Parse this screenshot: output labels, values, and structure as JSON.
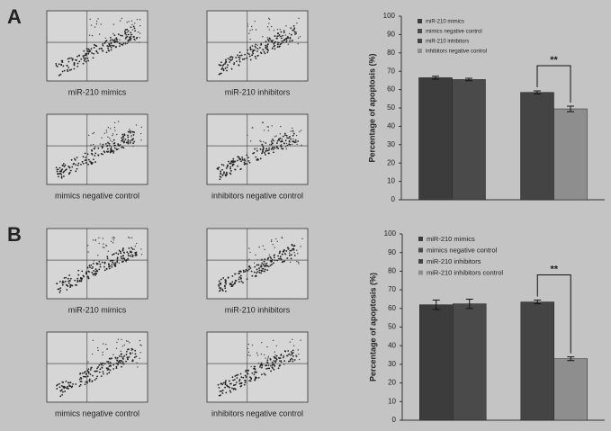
{
  "panels": [
    {
      "label": "A",
      "plots": [
        "miR-210 mimics",
        "miR-210 inhibitors",
        "mimics negative control",
        "inhibitors negative control"
      ]
    },
    {
      "label": "B",
      "plots": [
        "miR-210 mimics",
        "miR-210 inhibitors",
        "mimics negative control",
        "inhibitors negative control"
      ]
    }
  ],
  "chart_data": [
    {
      "type": "bar",
      "ylabel": "Percentage of apoptosis (%)",
      "categories": [
        null,
        null
      ],
      "series": [
        {
          "name": "miR-210 mimics",
          "color": "#3c3c3c",
          "values": [
            66.5,
            null
          ],
          "errors": [
            0.8,
            null
          ]
        },
        {
          "name": "mimics negative control",
          "color": "#4a4a4a",
          "values": [
            65.5,
            null
          ],
          "errors": [
            0.7,
            null
          ]
        },
        {
          "name": "miR-210 inhibitors",
          "color": "#444444",
          "values": [
            null,
            58.5
          ],
          "errors": [
            null,
            0.8
          ]
        },
        {
          "name": "inhibitors negative control",
          "color": "#8e8e8e",
          "values": [
            null,
            49.5
          ],
          "errors": [
            null,
            1.5
          ]
        }
      ],
      "ylim": [
        0,
        100
      ],
      "yticks": [
        0,
        10,
        20,
        30,
        40,
        50,
        60,
        70,
        80,
        90,
        100
      ],
      "annotation": "**"
    },
    {
      "type": "bar",
      "ylabel": "Percentage of apoptosis (%)",
      "categories": [
        null,
        null
      ],
      "series": [
        {
          "name": "miR-210 mimics",
          "color": "#3c3c3c",
          "values": [
            62,
            null
          ],
          "errors": [
            2.5,
            null
          ]
        },
        {
          "name": "mimics negative control",
          "color": "#4a4a4a",
          "values": [
            62.5,
            null
          ],
          "errors": [
            2.5,
            null
          ]
        },
        {
          "name": "miR-210 inhibitors",
          "color": "#444444",
          "values": [
            null,
            63.5
          ],
          "errors": [
            null,
            1
          ]
        },
        {
          "name": "miR-210 inhibitors control",
          "color": "#8e8e8e",
          "values": [
            null,
            33
          ],
          "errors": [
            null,
            1
          ]
        }
      ],
      "ylim": [
        0,
        100
      ],
      "yticks": [
        0,
        10,
        20,
        30,
        40,
        50,
        60,
        70,
        80,
        90,
        100
      ],
      "annotation": "**"
    }
  ]
}
